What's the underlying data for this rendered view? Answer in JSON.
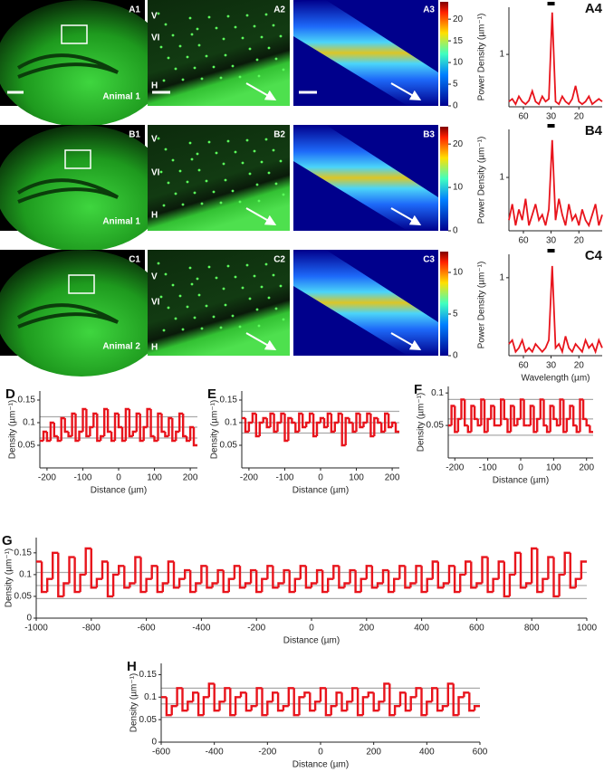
{
  "images": [
    {
      "labels": [
        "A1",
        "A2",
        "A3"
      ],
      "layers": [
        "V",
        "VI",
        "H"
      ],
      "animal": "Animal 1",
      "colorbar": {
        "lim": [
          0,
          24
        ],
        "ticks": [
          0,
          5,
          10,
          15,
          20
        ]
      }
    },
    {
      "labels": [
        "B1",
        "B2",
        "B3"
      ],
      "layers": [
        "V",
        "VI",
        "H"
      ],
      "animal": "Animal 1",
      "colorbar": {
        "lim": [
          0,
          24
        ],
        "ticks": [
          0,
          10,
          20
        ]
      }
    },
    {
      "labels": [
        "C1",
        "C2",
        "C3"
      ],
      "layers": [
        "V",
        "VI",
        "H"
      ],
      "animal": "Animal 2",
      "colorbar": {
        "lim": [
          0,
          12.5
        ],
        "ticks": [
          0,
          5,
          10
        ]
      }
    }
  ],
  "chart_data": [
    {
      "type": "line",
      "panel": "A4",
      "ylabel": "Power Density (µm⁻¹)",
      "x": [
        0.008,
        0.01,
        0.012,
        0.014,
        0.016,
        0.018,
        0.02,
        0.022,
        0.024,
        0.026,
        0.028,
        0.03,
        0.032,
        0.034,
        0.036,
        0.038,
        0.04,
        0.042,
        0.044,
        0.046,
        0.048,
        0.05,
        0.052,
        0.054,
        0.056,
        0.058,
        0.06,
        0.062,
        0.064
      ],
      "series": [
        {
          "color": "#e8141c",
          "values": [
            0.1,
            0.15,
            0.05,
            0.2,
            0.1,
            0.05,
            0.12,
            0.3,
            0.1,
            0.05,
            0.2,
            0.1,
            0.15,
            1.8,
            0.1,
            0.05,
            0.2,
            0.1,
            0.05,
            0.15,
            0.4,
            0.1,
            0.05,
            0.1,
            0.2,
            0.05,
            0.1,
            0.15,
            0.1
          ]
        }
      ],
      "xlim": [
        0.008,
        0.064
      ],
      "xticks": [
        {
          "value": 0.0167,
          "label": "60"
        },
        {
          "value": 0.0333,
          "label": "30"
        },
        {
          "value": 0.05,
          "label": "20"
        }
      ],
      "ylim": [
        0,
        1.9
      ],
      "yticks": [
        1
      ]
    },
    {
      "type": "line",
      "panel": "B4",
      "ylabel": "Power Density (µm⁻¹)",
      "x": [
        0.008,
        0.01,
        0.012,
        0.014,
        0.016,
        0.018,
        0.02,
        0.022,
        0.024,
        0.026,
        0.028,
        0.03,
        0.032,
        0.034,
        0.036,
        0.038,
        0.04,
        0.042,
        0.044,
        0.046,
        0.048,
        0.05,
        0.052,
        0.054,
        0.056,
        0.058,
        0.06,
        0.062,
        0.064
      ],
      "series": [
        {
          "color": "#e8141c",
          "values": [
            0.2,
            0.5,
            0.1,
            0.4,
            0.2,
            0.6,
            0.1,
            0.3,
            0.5,
            0.2,
            0.3,
            0.1,
            0.4,
            1.7,
            0.2,
            0.6,
            0.3,
            0.1,
            0.5,
            0.2,
            0.3,
            0.1,
            0.4,
            0.2,
            0.1,
            0.3,
            0.5,
            0.1,
            0.3
          ]
        }
      ],
      "xlim": [
        0.008,
        0.064
      ],
      "xticks": [
        {
          "value": 0.0167,
          "label": "60"
        },
        {
          "value": 0.0333,
          "label": "30"
        },
        {
          "value": 0.05,
          "label": "20"
        }
      ],
      "ylim": [
        0,
        1.9
      ],
      "yticks": [
        1
      ]
    },
    {
      "type": "line",
      "panel": "C4",
      "ylabel": "Power Density (µm⁻¹)",
      "xlabel": "Wavelength (µm)",
      "x": [
        0.008,
        0.01,
        0.012,
        0.014,
        0.016,
        0.018,
        0.02,
        0.022,
        0.024,
        0.026,
        0.028,
        0.03,
        0.032,
        0.034,
        0.036,
        0.038,
        0.04,
        0.042,
        0.044,
        0.046,
        0.048,
        0.05,
        0.052,
        0.054,
        0.056,
        0.058,
        0.06,
        0.062,
        0.064
      ],
      "series": [
        {
          "color": "#e8141c",
          "values": [
            0.15,
            0.2,
            0.05,
            0.1,
            0.2,
            0.05,
            0.1,
            0.05,
            0.15,
            0.1,
            0.05,
            0.1,
            0.2,
            1.15,
            0.1,
            0.15,
            0.05,
            0.25,
            0.1,
            0.05,
            0.15,
            0.1,
            0.05,
            0.2,
            0.1,
            0.15,
            0.05,
            0.2,
            0.1
          ]
        }
      ],
      "xlim": [
        0.008,
        0.064
      ],
      "xticks": [
        {
          "value": 0.0167,
          "label": "60"
        },
        {
          "value": 0.0333,
          "label": "30"
        },
        {
          "value": 0.05,
          "label": "20"
        }
      ],
      "ylim": [
        0,
        1.3
      ],
      "yticks": [
        1
      ]
    },
    {
      "type": "histogram",
      "panel": "D",
      "xlabel": "Distance (µm)",
      "ylabel": "Density (µm⁻¹)",
      "color": "#e8141c",
      "bins": [
        -220,
        -210,
        -200,
        -190,
        -180,
        -170,
        -160,
        -150,
        -140,
        -130,
        -120,
        -110,
        -100,
        -90,
        -80,
        -70,
        -60,
        -50,
        -40,
        -30,
        -20,
        -10,
        0,
        10,
        20,
        30,
        40,
        50,
        60,
        70,
        80,
        90,
        100,
        110,
        120,
        130,
        140,
        150,
        160,
        170,
        180,
        190,
        200,
        210,
        220
      ],
      "values": [
        0.06,
        0.08,
        0.06,
        0.1,
        0.07,
        0.06,
        0.11,
        0.08,
        0.07,
        0.12,
        0.06,
        0.08,
        0.13,
        0.07,
        0.09,
        0.12,
        0.06,
        0.07,
        0.13,
        0.08,
        0.06,
        0.12,
        0.09,
        0.06,
        0.13,
        0.07,
        0.08,
        0.12,
        0.06,
        0.09,
        0.13,
        0.07,
        0.06,
        0.12,
        0.08,
        0.07,
        0.11,
        0.06,
        0.08,
        0.12,
        0.07,
        0.06,
        0.09,
        0.05
      ],
      "envelope": [
        0.113,
        0.09,
        0.066
      ],
      "xlim": [
        -220,
        220
      ],
      "xticks": [
        -200,
        -100,
        0,
        100,
        200
      ],
      "ylim": [
        0,
        0.17
      ],
      "yticks": [
        0.05,
        0.1,
        0.15
      ]
    },
    {
      "type": "histogram",
      "panel": "E",
      "xlabel": "Distance (µm)",
      "ylabel": "Density (µm⁻¹)",
      "color": "#e8141c",
      "bins": [
        -220,
        -210,
        -200,
        -190,
        -180,
        -170,
        -160,
        -150,
        -140,
        -130,
        -120,
        -110,
        -100,
        -90,
        -80,
        -70,
        -60,
        -50,
        -40,
        -30,
        -20,
        -10,
        0,
        10,
        20,
        30,
        40,
        50,
        60,
        70,
        80,
        90,
        100,
        110,
        120,
        130,
        140,
        150,
        160,
        170,
        180,
        190,
        200,
        210,
        220
      ],
      "values": [
        0.11,
        0.08,
        0.1,
        0.12,
        0.07,
        0.1,
        0.11,
        0.09,
        0.12,
        0.08,
        0.1,
        0.12,
        0.06,
        0.11,
        0.1,
        0.08,
        0.12,
        0.09,
        0.1,
        0.12,
        0.07,
        0.1,
        0.11,
        0.09,
        0.12,
        0.08,
        0.1,
        0.12,
        0.05,
        0.11,
        0.1,
        0.08,
        0.12,
        0.09,
        0.1,
        0.12,
        0.07,
        0.11,
        0.1,
        0.08,
        0.12,
        0.09,
        0.1,
        0.08
      ],
      "envelope": [
        0.125,
        0.1,
        0.077
      ],
      "xlim": [
        -220,
        220
      ],
      "xticks": [
        -200,
        -100,
        0,
        100,
        200
      ],
      "ylim": [
        0,
        0.17
      ],
      "yticks": [
        0.05,
        0.1,
        0.15
      ]
    },
    {
      "type": "histogram",
      "panel": "F",
      "xlabel": "Distance (µm)",
      "ylabel": "Density (µm⁻¹)",
      "color": "#e8141c",
      "bins": [
        -220,
        -210,
        -200,
        -190,
        -180,
        -170,
        -160,
        -150,
        -140,
        -130,
        -120,
        -110,
        -100,
        -90,
        -80,
        -70,
        -60,
        -50,
        -40,
        -30,
        -20,
        -10,
        0,
        10,
        20,
        30,
        40,
        50,
        60,
        70,
        80,
        90,
        100,
        110,
        120,
        130,
        140,
        150,
        160,
        170,
        180,
        190,
        200,
        210,
        220
      ],
      "values": [
        0.05,
        0.08,
        0.04,
        0.06,
        0.09,
        0.05,
        0.04,
        0.08,
        0.06,
        0.05,
        0.09,
        0.04,
        0.06,
        0.08,
        0.05,
        0.05,
        0.09,
        0.06,
        0.04,
        0.08,
        0.05,
        0.06,
        0.09,
        0.05,
        0.05,
        0.08,
        0.04,
        0.06,
        0.09,
        0.05,
        0.04,
        0.08,
        0.06,
        0.05,
        0.09,
        0.04,
        0.06,
        0.08,
        0.05,
        0.04,
        0.09,
        0.06,
        0.05,
        0.04
      ],
      "envelope": [
        0.09,
        0.06,
        0.035
      ],
      "xlim": [
        -220,
        220
      ],
      "xticks": [
        -200,
        -100,
        0,
        100,
        200
      ],
      "ylim": [
        0,
        0.11
      ],
      "yticks": [
        0.05,
        0.1
      ]
    },
    {
      "type": "histogram",
      "panel": "G",
      "xlabel": "Distance (µm)",
      "ylabel": "Density (µm⁻¹)",
      "color": "#e8141c",
      "bins": [
        -1000,
        -980,
        -960,
        -940,
        -920,
        -900,
        -880,
        -860,
        -840,
        -820,
        -800,
        -780,
        -760,
        -740,
        -720,
        -700,
        -680,
        -660,
        -640,
        -620,
        -600,
        -580,
        -560,
        -540,
        -520,
        -500,
        -480,
        -460,
        -440,
        -420,
        -400,
        -380,
        -360,
        -340,
        -320,
        -300,
        -280,
        -260,
        -240,
        -220,
        -200,
        -180,
        -160,
        -140,
        -120,
        -100,
        -80,
        -60,
        -40,
        -20,
        0,
        20,
        40,
        60,
        80,
        100,
        120,
        140,
        160,
        180,
        200,
        220,
        240,
        260,
        280,
        300,
        320,
        340,
        360,
        380,
        400,
        420,
        440,
        460,
        480,
        500,
        520,
        540,
        560,
        580,
        600,
        620,
        640,
        660,
        680,
        700,
        720,
        740,
        760,
        780,
        800,
        820,
        840,
        860,
        880,
        900,
        920,
        940,
        960,
        980,
        1000
      ],
      "values": [
        0.13,
        0.06,
        0.09,
        0.15,
        0.05,
        0.08,
        0.14,
        0.06,
        0.1,
        0.16,
        0.07,
        0.09,
        0.13,
        0.05,
        0.1,
        0.12,
        0.07,
        0.08,
        0.14,
        0.06,
        0.09,
        0.12,
        0.06,
        0.08,
        0.13,
        0.07,
        0.09,
        0.11,
        0.06,
        0.08,
        0.12,
        0.07,
        0.08,
        0.11,
        0.06,
        0.09,
        0.12,
        0.07,
        0.08,
        0.11,
        0.06,
        0.09,
        0.12,
        0.07,
        0.08,
        0.11,
        0.06,
        0.09,
        0.12,
        0.07,
        0.08,
        0.11,
        0.06,
        0.09,
        0.12,
        0.07,
        0.08,
        0.11,
        0.06,
        0.09,
        0.12,
        0.07,
        0.08,
        0.11,
        0.06,
        0.09,
        0.12,
        0.07,
        0.08,
        0.12,
        0.06,
        0.09,
        0.13,
        0.07,
        0.08,
        0.12,
        0.06,
        0.1,
        0.13,
        0.07,
        0.08,
        0.14,
        0.06,
        0.09,
        0.13,
        0.05,
        0.1,
        0.15,
        0.07,
        0.08,
        0.16,
        0.06,
        0.09,
        0.14,
        0.05,
        0.1,
        0.15,
        0.07,
        0.09,
        0.13
      ],
      "envelope": [
        0.105,
        0.075,
        0.045
      ],
      "xlim": [
        -1000,
        1000
      ],
      "xticks": [
        -1000,
        -800,
        -600,
        -400,
        -200,
        0,
        200,
        400,
        600,
        800,
        1000
      ],
      "ylim": [
        0,
        0.185
      ],
      "yticks": [
        0,
        0.05,
        0.1,
        0.15
      ]
    },
    {
      "type": "histogram",
      "panel": "H",
      "xlabel": "Distance (µm)",
      "ylabel": "Density (µm⁻¹)",
      "color": "#e8141c",
      "bins": [
        -600,
        -580,
        -560,
        -540,
        -520,
        -500,
        -480,
        -460,
        -440,
        -420,
        -400,
        -380,
        -360,
        -340,
        -320,
        -300,
        -280,
        -260,
        -240,
        -220,
        -200,
        -180,
        -160,
        -140,
        -120,
        -100,
        -80,
        -60,
        -40,
        -20,
        0,
        20,
        40,
        60,
        80,
        100,
        120,
        140,
        160,
        180,
        200,
        220,
        240,
        260,
        280,
        300,
        320,
        340,
        360,
        380,
        400,
        420,
        440,
        460,
        480,
        500,
        520,
        540,
        560,
        580,
        600
      ],
      "values": [
        0.1,
        0.06,
        0.08,
        0.12,
        0.07,
        0.09,
        0.11,
        0.06,
        0.1,
        0.13,
        0.07,
        0.09,
        0.12,
        0.06,
        0.1,
        0.11,
        0.07,
        0.08,
        0.12,
        0.06,
        0.09,
        0.11,
        0.07,
        0.08,
        0.12,
        0.06,
        0.1,
        0.11,
        0.07,
        0.09,
        0.12,
        0.06,
        0.08,
        0.11,
        0.07,
        0.09,
        0.12,
        0.06,
        0.1,
        0.11,
        0.07,
        0.09,
        0.13,
        0.06,
        0.08,
        0.11,
        0.07,
        0.1,
        0.12,
        0.06,
        0.09,
        0.12,
        0.07,
        0.08,
        0.13,
        0.06,
        0.1,
        0.11,
        0.07,
        0.08
      ],
      "envelope": [
        0.12,
        0.085,
        0.055
      ],
      "xlim": [
        -600,
        600
      ],
      "xticks": [
        -600,
        -400,
        -200,
        0,
        200,
        400,
        600
      ],
      "ylim": [
        0,
        0.175
      ],
      "yticks": [
        0,
        0.05,
        0.1,
        0.15
      ]
    }
  ]
}
